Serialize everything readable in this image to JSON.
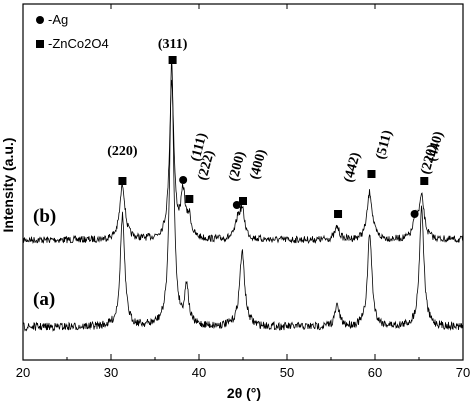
{
  "chart_data": {
    "type": "line",
    "xlabel": "2θ (°)",
    "ylabel": "Intensity (a.u.)",
    "xlim": [
      20,
      70
    ],
    "xticks": [
      20,
      30,
      40,
      50,
      60,
      70
    ],
    "legend": {
      "placement": "top-left",
      "entries": [
        {
          "marker": "circle",
          "label": "-Ag"
        },
        {
          "marker": "square",
          "label": "-ZnCo2O4"
        }
      ]
    },
    "series": [
      {
        "name": "(b)",
        "peaks": [
          {
            "x": 31.3,
            "height": 0.35,
            "width": 0.35
          },
          {
            "x": 36.9,
            "height": 1.0,
            "width": 0.3
          },
          {
            "x": 38.2,
            "height": 0.28,
            "width": 0.3
          },
          {
            "x": 38.9,
            "height": 0.12,
            "width": 0.25
          },
          {
            "x": 44.4,
            "height": 0.1,
            "width": 0.3
          },
          {
            "x": 44.9,
            "height": 0.18,
            "width": 0.35
          },
          {
            "x": 55.7,
            "height": 0.08,
            "width": 0.3
          },
          {
            "x": 59.4,
            "height": 0.3,
            "width": 0.35
          },
          {
            "x": 64.6,
            "height": 0.12,
            "width": 0.3
          },
          {
            "x": 65.3,
            "height": 0.26,
            "width": 0.35
          }
        ]
      },
      {
        "name": "(a)",
        "peaks": [
          {
            "x": 31.3,
            "height": 0.42,
            "width": 0.3
          },
          {
            "x": 36.9,
            "height": 1.0,
            "width": 0.28
          },
          {
            "x": 38.6,
            "height": 0.15,
            "width": 0.25
          },
          {
            "x": 44.9,
            "height": 0.28,
            "width": 0.35
          },
          {
            "x": 55.7,
            "height": 0.08,
            "width": 0.3
          },
          {
            "x": 59.4,
            "height": 0.35,
            "width": 0.3
          },
          {
            "x": 65.3,
            "height": 0.45,
            "width": 0.3
          }
        ]
      }
    ],
    "annotations": [
      {
        "text": "(220)",
        "x": 31.3,
        "marker": "square"
      },
      {
        "text": "(311)",
        "x": 37.0,
        "marker": "square"
      },
      {
        "text": "(111)",
        "x": 38.2,
        "marker": "circle"
      },
      {
        "text": "(222)",
        "x": 38.9,
        "marker": "square"
      },
      {
        "text": "(200)",
        "x": 44.3,
        "marker": "circle"
      },
      {
        "text": "(400)",
        "x": 45.0,
        "marker": "square"
      },
      {
        "text": "(442)",
        "x": 55.8,
        "marker": "square"
      },
      {
        "text": "(511)",
        "x": 59.6,
        "marker": "square"
      },
      {
        "text": "(220)",
        "x": 64.5,
        "marker": "circle"
      },
      {
        "text": "(440)",
        "x": 65.6,
        "marker": "square"
      }
    ]
  }
}
